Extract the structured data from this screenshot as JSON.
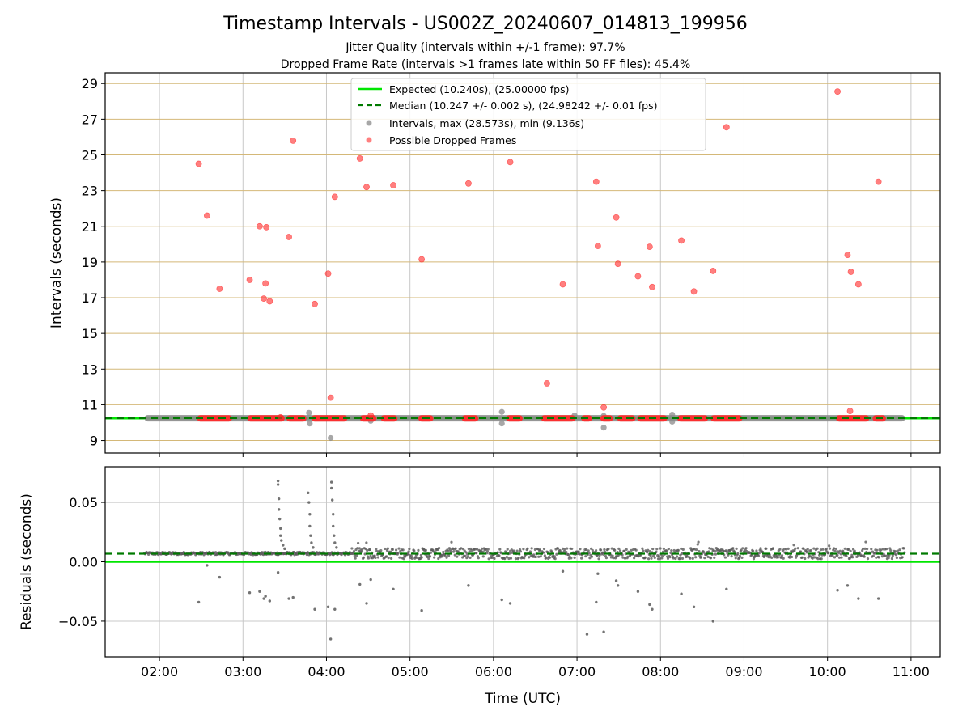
{
  "title": "Timestamp Intervals - US002Z_20240607_014813_199956",
  "subtitle1": "Jitter Quality (intervals within +/-1 frame): 97.7%",
  "subtitle2": "Dropped Frame Rate (intervals >1 frames late within 50 FF files): 45.4%",
  "colors": {
    "expected": "#00e600",
    "median": "#007a00",
    "intervals": "#8a8a8a",
    "dropped": "#ff2a2a",
    "hgrid_top": "#d4b878",
    "grid": "#c8c8c8",
    "residuals": "#5a5a5a"
  },
  "chart_data": [
    {
      "type": "scatter",
      "ylabel": "Intervals (seconds)",
      "xlabel": "",
      "x_unit": "hours UTC",
      "xlim": [
        1.35,
        11.35
      ],
      "ylim": [
        8.3,
        29.6
      ],
      "yticks": [
        "9",
        "11",
        "13",
        "15",
        "17",
        "19",
        "21",
        "23",
        "25",
        "27",
        "29"
      ],
      "xticks": [
        "02:00",
        "03:00",
        "04:00",
        "05:00",
        "06:00",
        "07:00",
        "08:00",
        "09:00",
        "10:00",
        "11:00"
      ],
      "legend_placement": "upper-center",
      "legend": [
        "Expected (10.240s), (25.00000 fps)",
        "Median (10.247 +/- 0.002 s), (24.98242 +/- 0.01 fps)",
        "Intervals, max (28.573s), min (9.136s)",
        "Possible Dropped Frames"
      ],
      "expected": 10.24,
      "median": 10.247,
      "intervals_band": [
        1.82,
        10.93,
        10.245
      ],
      "intervals_outliers": [
        [
          3.79,
          10.55
        ],
        [
          3.8,
          9.95
        ],
        [
          4.05,
          9.14
        ],
        [
          4.53,
          10.1
        ],
        [
          6.1,
          10.6
        ],
        [
          6.1,
          9.95
        ],
        [
          6.97,
          10.4
        ],
        [
          7.32,
          9.72
        ],
        [
          7.32,
          10.38
        ],
        [
          8.14,
          10.45
        ],
        [
          8.14,
          10.05
        ]
      ],
      "dropped_frames": [
        [
          2.47,
          24.5
        ],
        [
          2.57,
          21.6
        ],
        [
          2.72,
          17.5
        ],
        [
          3.08,
          18.0
        ],
        [
          3.2,
          21.0
        ],
        [
          3.25,
          16.95
        ],
        [
          3.27,
          17.8
        ],
        [
          3.28,
          20.95
        ],
        [
          3.32,
          16.8
        ],
        [
          3.55,
          20.4
        ],
        [
          3.6,
          25.8
        ],
        [
          3.86,
          16.65
        ],
        [
          4.02,
          18.35
        ],
        [
          4.05,
          11.4
        ],
        [
          4.1,
          22.65
        ],
        [
          4.4,
          24.8
        ],
        [
          4.48,
          23.2
        ],
        [
          4.8,
          23.3
        ],
        [
          5.14,
          19.15
        ],
        [
          5.7,
          23.4
        ],
        [
          6.2,
          24.6
        ],
        [
          6.64,
          12.2
        ],
        [
          6.83,
          17.75
        ],
        [
          7.23,
          23.5
        ],
        [
          7.25,
          19.9
        ],
        [
          7.32,
          10.85
        ],
        [
          7.47,
          21.5
        ],
        [
          7.49,
          18.9
        ],
        [
          7.73,
          18.2
        ],
        [
          7.87,
          19.85
        ],
        [
          7.9,
          17.6
        ],
        [
          8.25,
          20.2
        ],
        [
          8.4,
          17.35
        ],
        [
          8.63,
          18.5
        ],
        [
          8.79,
          26.55
        ],
        [
          10.12,
          28.55
        ],
        [
          10.24,
          19.4
        ],
        [
          10.27,
          10.65
        ],
        [
          10.28,
          18.45
        ],
        [
          10.37,
          17.75
        ],
        [
          10.61,
          23.5
        ],
        [
          4.53,
          10.4
        ],
        [
          3.45,
          10.3
        ]
      ],
      "dropped_clusters": [
        [
          2.45,
          2.87
        ],
        [
          3.05,
          3.5
        ],
        [
          3.52,
          3.76
        ],
        [
          3.82,
          4.25
        ],
        [
          4.4,
          4.6
        ],
        [
          4.65,
          4.85
        ],
        [
          5.1,
          5.28
        ],
        [
          5.62,
          5.82
        ],
        [
          6.15,
          6.35
        ],
        [
          6.57,
          6.98
        ],
        [
          7.05,
          7.18
        ],
        [
          7.28,
          7.43
        ],
        [
          7.48,
          7.7
        ],
        [
          7.72,
          8.08
        ],
        [
          8.2,
          8.57
        ],
        [
          8.6,
          8.98
        ],
        [
          10.1,
          10.5
        ],
        [
          10.54,
          10.7
        ]
      ],
      "dropped_cluster_level": 10.24
    },
    {
      "type": "scatter",
      "ylabel": "Residuals (seconds)",
      "xlabel": "Time (UTC)",
      "x_unit": "hours UTC",
      "xlim": [
        1.35,
        11.35
      ],
      "ylim": [
        -0.08,
        0.08
      ],
      "yticks": [
        "−0.05",
        "0.00",
        "0.05"
      ],
      "xticks": [
        "02:00",
        "03:00",
        "04:00",
        "05:00",
        "06:00",
        "07:00",
        "08:00",
        "09:00",
        "10:00",
        "11:00"
      ],
      "expected": 0.0,
      "median": 0.0068,
      "residual_baseline": 0.007,
      "residual_x_range": [
        1.82,
        10.93
      ],
      "residual_spikes": [
        [
          3.42,
          0.068
        ],
        [
          3.42,
          0.065
        ],
        [
          3.43,
          0.053
        ],
        [
          3.43,
          0.044
        ],
        [
          3.44,
          0.036
        ],
        [
          3.45,
          0.028
        ],
        [
          3.45,
          0.022
        ],
        [
          3.46,
          0.018
        ],
        [
          3.48,
          0.014
        ],
        [
          3.5,
          0.011
        ],
        [
          3.78,
          0.058
        ],
        [
          3.79,
          0.05
        ],
        [
          3.8,
          0.04
        ],
        [
          3.8,
          0.03
        ],
        [
          3.81,
          0.022
        ],
        [
          3.82,
          0.016
        ],
        [
          3.84,
          0.012
        ],
        [
          4.06,
          0.067
        ],
        [
          4.06,
          0.062
        ],
        [
          4.07,
          0.052
        ],
        [
          4.08,
          0.04
        ],
        [
          4.08,
          0.03
        ],
        [
          4.09,
          0.022
        ],
        [
          4.1,
          0.016
        ],
        [
          4.12,
          0.012
        ]
      ],
      "residual_negatives": [
        [
          2.47,
          -0.034
        ],
        [
          2.57,
          -0.003
        ],
        [
          2.72,
          -0.013
        ],
        [
          3.08,
          -0.026
        ],
        [
          3.2,
          -0.025
        ],
        [
          3.25,
          -0.031
        ],
        [
          3.27,
          -0.029
        ],
        [
          3.32,
          -0.033
        ],
        [
          3.42,
          -0.009
        ],
        [
          3.55,
          -0.031
        ],
        [
          3.6,
          -0.03
        ],
        [
          3.86,
          -0.04
        ],
        [
          4.02,
          -0.038
        ],
        [
          4.05,
          -0.065
        ],
        [
          4.1,
          -0.04
        ],
        [
          4.4,
          -0.019
        ],
        [
          4.48,
          -0.035
        ],
        [
          4.53,
          -0.015
        ],
        [
          4.8,
          -0.023
        ],
        [
          5.14,
          -0.041
        ],
        [
          5.7,
          -0.02
        ],
        [
          6.1,
          -0.032
        ],
        [
          6.2,
          -0.035
        ],
        [
          6.83,
          -0.008
        ],
        [
          7.12,
          -0.061
        ],
        [
          7.23,
          -0.034
        ],
        [
          7.25,
          -0.01
        ],
        [
          7.32,
          -0.059
        ],
        [
          7.47,
          -0.016
        ],
        [
          7.49,
          -0.02
        ],
        [
          7.73,
          -0.025
        ],
        [
          7.87,
          -0.036
        ],
        [
          7.9,
          -0.04
        ],
        [
          8.25,
          -0.027
        ],
        [
          8.4,
          -0.038
        ],
        [
          8.63,
          -0.05
        ],
        [
          8.79,
          -0.023
        ],
        [
          10.12,
          -0.024
        ],
        [
          10.24,
          -0.02
        ],
        [
          10.37,
          -0.031
        ],
        [
          10.61,
          -0.031
        ]
      ]
    }
  ]
}
